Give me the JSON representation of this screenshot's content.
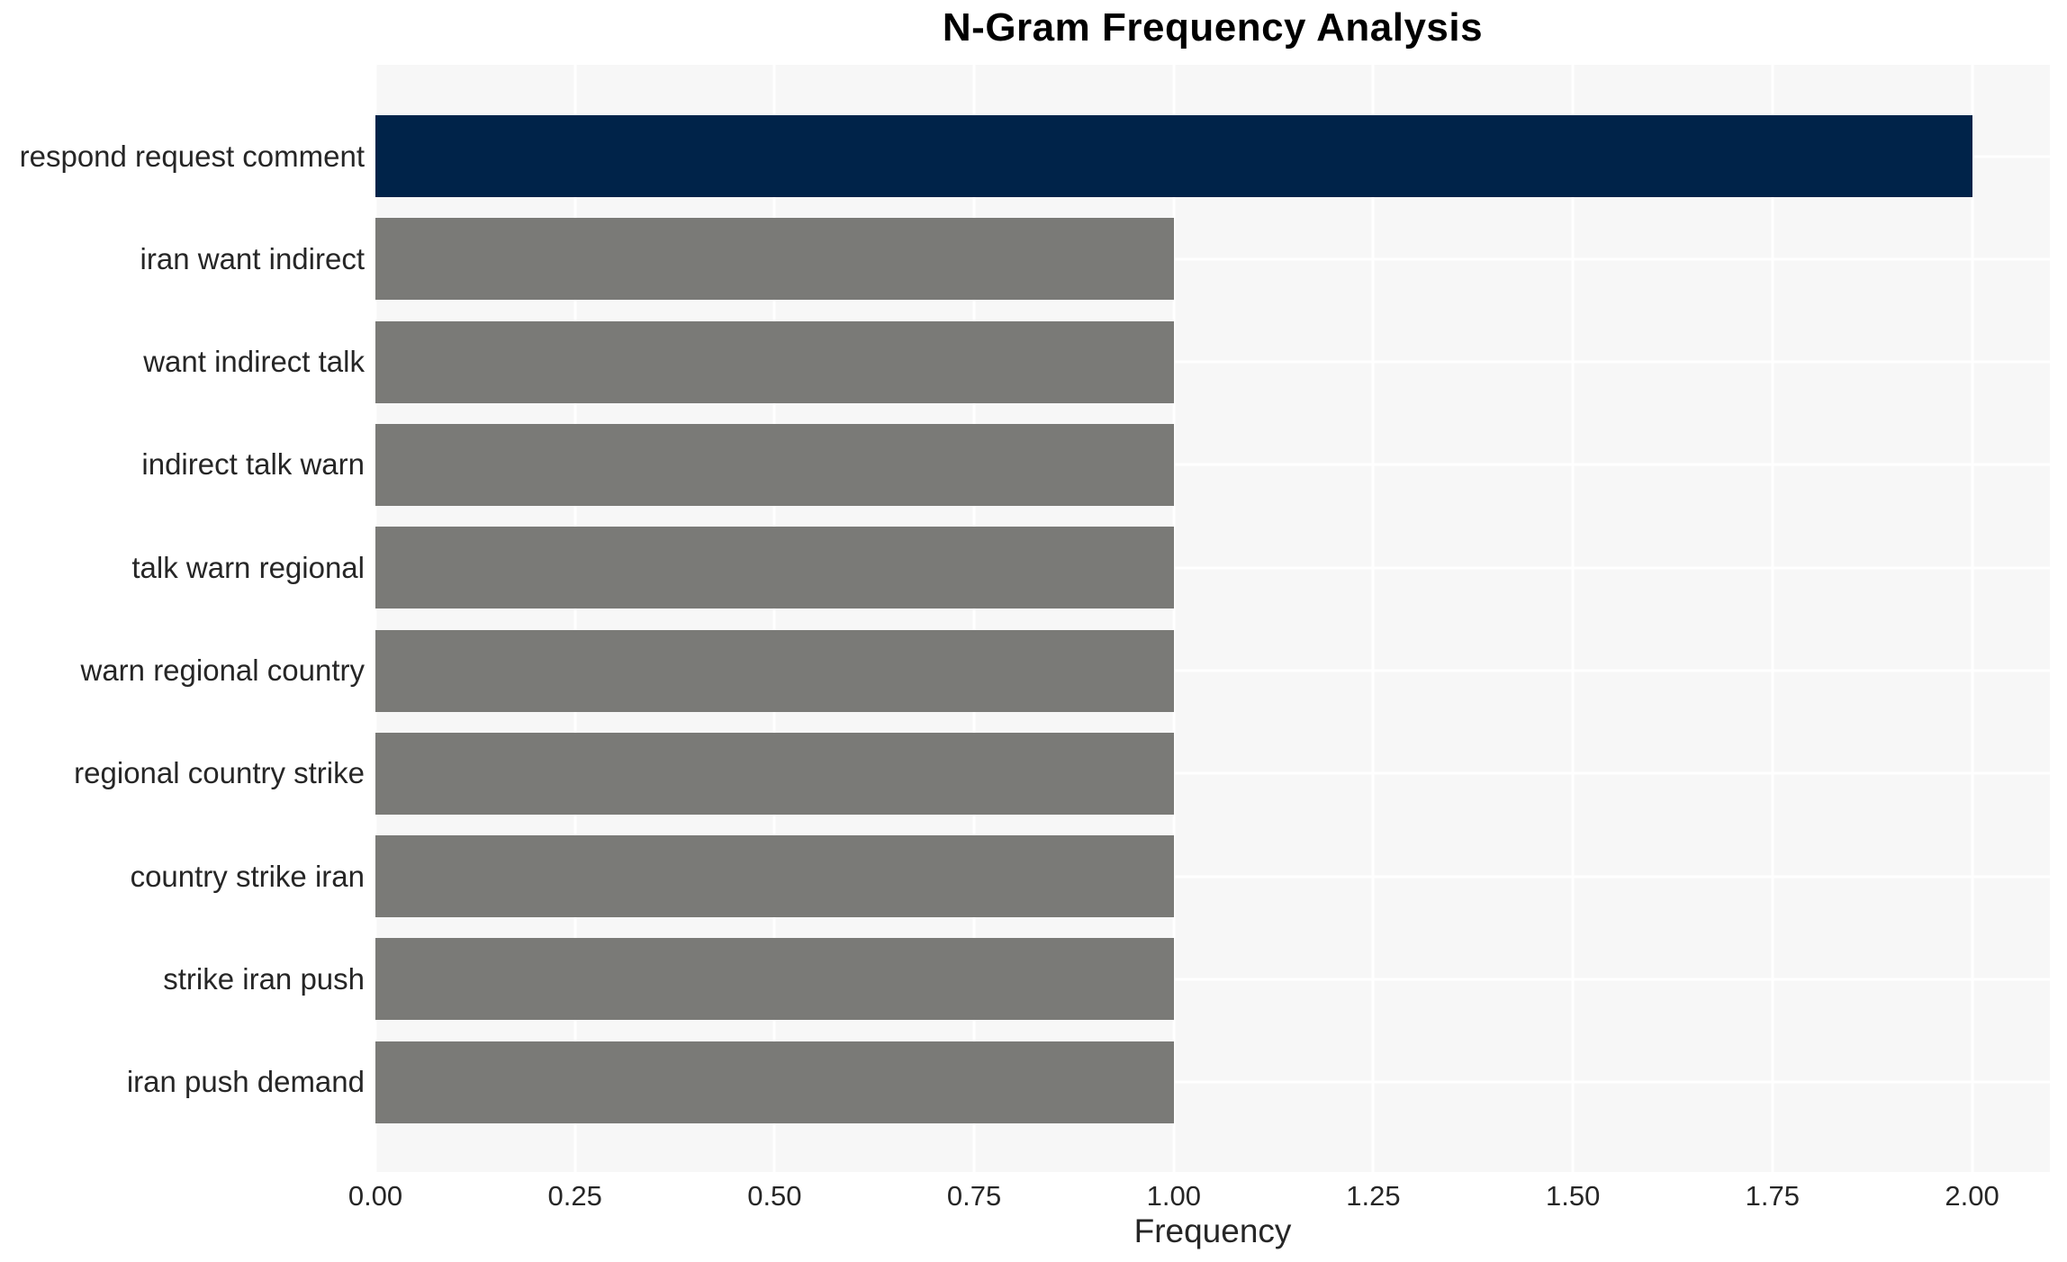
{
  "chart_data": {
    "type": "bar",
    "orientation": "horizontal",
    "title": "N-Gram Frequency Analysis",
    "xlabel": "Frequency",
    "ylabel": "",
    "categories": [
      "respond request comment",
      "iran want indirect",
      "want indirect talk",
      "indirect talk warn",
      "talk warn regional",
      "warn regional country",
      "regional country strike",
      "country strike iran",
      "strike iran push",
      "iran push demand"
    ],
    "values": [
      2.0,
      1.0,
      1.0,
      1.0,
      1.0,
      1.0,
      1.0,
      1.0,
      1.0,
      1.0
    ],
    "bar_colors": [
      "#002349",
      "#7a7a77",
      "#7a7a77",
      "#7a7a77",
      "#7a7a77",
      "#7a7a77",
      "#7a7a77",
      "#7a7a77",
      "#7a7a77",
      "#7a7a77"
    ],
    "xlim": [
      0,
      2.0975
    ],
    "xticks": [
      0,
      0.25,
      0.5,
      0.75,
      1.0,
      1.25,
      1.5,
      1.75,
      2.0
    ],
    "xtick_labels": [
      "0.00",
      "0.25",
      "0.50",
      "0.75",
      "1.00",
      "1.25",
      "1.50",
      "1.75",
      "2.00"
    ],
    "grid": true,
    "legend": false,
    "colors": {
      "highlight_bar": "#002349",
      "default_bar": "#7a7a77",
      "plot_background": "#f7f7f7",
      "gridline": "#ffffff",
      "tick_text": "#262626",
      "title_text": "#000000"
    }
  }
}
